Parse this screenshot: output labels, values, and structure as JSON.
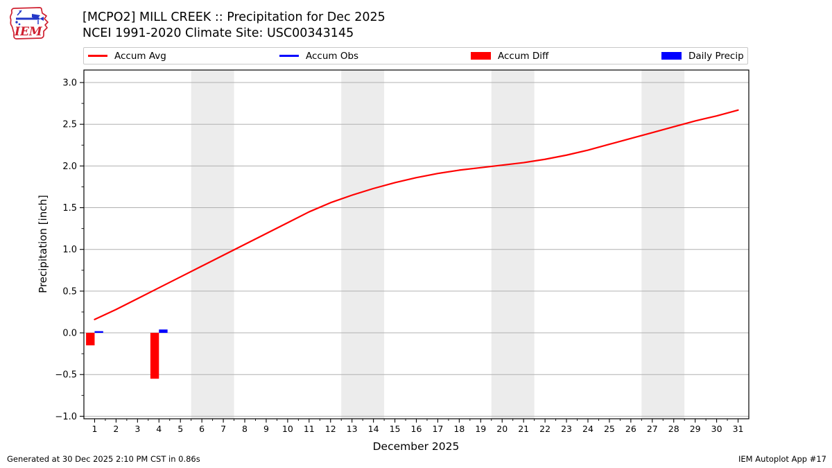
{
  "header": {
    "logo": {
      "text": "IEM",
      "outline_color": "#cf2030",
      "vane_color": "#2438c8"
    },
    "title_line1": "[MCPO2] MILL CREEK :: Precipitation for Dec 2025",
    "title_line2": "NCEI 1991-2020 Climate Site: USC00343145"
  },
  "legend": {
    "items": [
      {
        "label": "Accum Avg",
        "swatch": "line",
        "color": "#ff0000"
      },
      {
        "label": "Accum Obs",
        "swatch": "line",
        "color": "#0000ff"
      },
      {
        "label": "Accum Diff",
        "swatch": "rect",
        "color": "#ff0000"
      },
      {
        "label": "Daily Precip",
        "swatch": "rect",
        "color": "#0000ff"
      }
    ]
  },
  "footer": {
    "left": "Generated at 30 Dec 2025 2:10 PM CST in 0.86s",
    "right": "IEM Autoplot App #17"
  },
  "style": {
    "band_color": "#ececec",
    "grid_color": "#b0b0b0",
    "axis_color": "#000000",
    "accent_red": "#ff0000",
    "accent_blue": "#0000ff"
  },
  "chart_data": {
    "type": "line+bar",
    "title": "[MCPO2] MILL CREEK :: Precipitation for Dec 2025",
    "subtitle": "NCEI 1991-2020 Climate Site: USC00343145",
    "xlabel": "December 2025",
    "ylabel": "Precipitation [inch]",
    "xlim": [
      0.5,
      31.5
    ],
    "ylim": [
      -1.03,
      3.15
    ],
    "grid": "horizontal-only",
    "legend_position": "top",
    "weekend_shading_days": [
      [
        5.5,
        7.5
      ],
      [
        12.5,
        14.5
      ],
      [
        19.5,
        21.5
      ],
      [
        26.5,
        28.5
      ]
    ],
    "bar_width_days": 0.4,
    "xticks": [
      1,
      2,
      3,
      4,
      5,
      6,
      7,
      8,
      9,
      10,
      11,
      12,
      13,
      14,
      15,
      16,
      17,
      18,
      19,
      20,
      21,
      22,
      23,
      24,
      25,
      26,
      27,
      28,
      29,
      30,
      31
    ],
    "yticks": [
      -1.0,
      -0.5,
      0.0,
      0.5,
      1.0,
      1.5,
      2.0,
      2.5,
      3.0
    ],
    "ytick_labels": [
      "−1.0",
      "−0.5",
      "0.0",
      "0.5",
      "1.0",
      "1.5",
      "2.0",
      "2.5",
      "3.0"
    ],
    "series": [
      {
        "name": "Accum Avg",
        "type": "line",
        "color": "#ff0000",
        "x": [
          1,
          2,
          3,
          4,
          5,
          6,
          7,
          8,
          9,
          10,
          11,
          12,
          13,
          14,
          15,
          16,
          17,
          18,
          19,
          20,
          21,
          22,
          23,
          24,
          25,
          26,
          27,
          28,
          29,
          30,
          31
        ],
        "values": [
          0.16,
          0.28,
          0.41,
          0.54,
          0.67,
          0.8,
          0.93,
          1.06,
          1.19,
          1.32,
          1.45,
          1.56,
          1.65,
          1.73,
          1.8,
          1.86,
          1.91,
          1.95,
          1.98,
          2.01,
          2.04,
          2.08,
          2.13,
          2.19,
          2.26,
          2.33,
          2.4,
          2.47,
          2.54,
          2.6,
          2.67
        ]
      },
      {
        "name": "Accum Obs",
        "type": "line",
        "color": "#0000ff",
        "x": [],
        "values": []
      },
      {
        "name": "Accum Diff",
        "type": "bar",
        "color": "#ff0000",
        "side": "left",
        "points": [
          {
            "day": 1,
            "value": -0.15
          },
          {
            "day": 4,
            "value": -0.55
          }
        ]
      },
      {
        "name": "Daily Precip",
        "type": "bar",
        "color": "#0000ff",
        "side": "right",
        "points": [
          {
            "day": 1,
            "value": 0.02
          },
          {
            "day": 4,
            "value": 0.04
          }
        ]
      }
    ]
  }
}
